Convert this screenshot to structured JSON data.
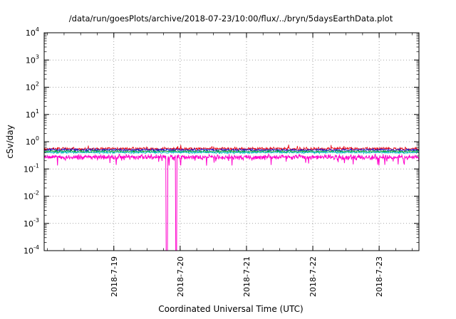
{
  "chart_data": {
    "type": "line",
    "title": "/data/run/goesPlots/archive/2018-07-23/10:00/flux/../bryn/5daysEarthData.plot",
    "xlabel": "Coordinated Universal Time (UTC)",
    "ylabel": "cSv/day",
    "y_scale": "log10",
    "ylim": [
      0.0001,
      10000
    ],
    "ylim_exponents": [
      -4,
      4
    ],
    "y_tick_exponents": [
      4,
      3,
      2,
      1,
      0,
      -1,
      -2,
      -3,
      -4
    ],
    "grid": true,
    "legend": "none",
    "x_range_days": [
      17.95,
      23.6
    ],
    "x_ticks": [
      {
        "label": "2018-7-19",
        "day": 19
      },
      {
        "label": "2018-7-20",
        "day": 20
      },
      {
        "label": "2018-7-21",
        "day": 21
      },
      {
        "label": "2018-7-22",
        "day": 22
      },
      {
        "label": "2018-7-23",
        "day": 23
      }
    ],
    "series": [
      {
        "name": "series-red",
        "color": "#e8000d",
        "level": 0.55,
        "noise_log10": 0.085,
        "seed": 101,
        "spikes_up": {
          "prob": 0.03,
          "mag": 0.12
        }
      },
      {
        "name": "series-blue",
        "color": "#1a1acc",
        "level": 0.5,
        "noise_log10": 0.07,
        "seed": 202
      },
      {
        "name": "series-green",
        "color": "#009a22",
        "level": 0.44,
        "noise_log10": 0.06,
        "seed": 303
      },
      {
        "name": "series-cyan",
        "color": "#00b7c4",
        "level": 0.4,
        "noise_log10": 0.05,
        "seed": 404
      },
      {
        "name": "series-magenta",
        "color": "#ff00cc",
        "level": 0.27,
        "noise_log10": 0.13,
        "seed": 505,
        "spikes_down": {
          "prob": 0.05,
          "mag": 0.3
        },
        "dropouts": [
          {
            "day": 19.8,
            "width_days": 0.025,
            "drop_to": 0.0001
          },
          {
            "day": 19.94,
            "width_days": 0.025,
            "drop_to": 0.0001
          }
        ]
      }
    ],
    "grid_color": "#8a8a8a",
    "axis_color": "#000000"
  }
}
